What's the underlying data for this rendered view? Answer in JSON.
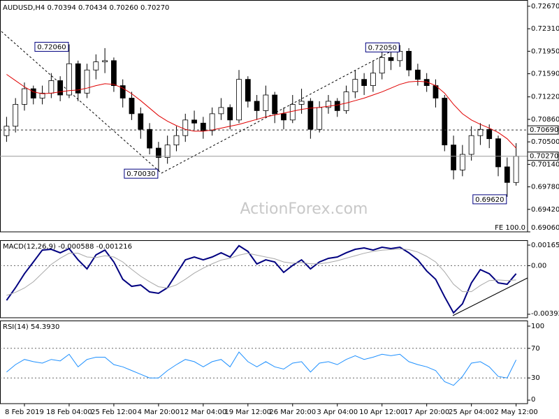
{
  "chart_data": [
    {
      "type": "candlestick",
      "title": "AUDUSD,H4  0.70394 0.70434 0.70260 0.70270",
      "categories": [
        null,
        null,
        "8 Feb 2019",
        null,
        null,
        null,
        null,
        "18 Feb 04:00",
        null,
        null,
        null,
        null,
        "25 Feb 12:00",
        null,
        null,
        null,
        null,
        "4 Mar 20:00",
        null,
        null,
        null,
        null,
        "12 Mar 04:00",
        null,
        null,
        null,
        null,
        "19 Mar 12:00",
        null,
        null,
        null,
        null,
        "26 Mar 20:00",
        null,
        null,
        null,
        null,
        "3 Apr 04:00",
        null,
        null,
        null,
        null,
        "10 Apr 12:00",
        null,
        null,
        null,
        null,
        "17 Apr 20:00",
        null,
        null,
        null,
        null,
        "25 Apr 04:00",
        null,
        null,
        null,
        null,
        "2 May 12:00"
      ],
      "candles": [
        [
          0.706,
          0.709,
          0.705,
          0.7075
        ],
        [
          0.7075,
          0.712,
          0.7065,
          0.711
        ],
        [
          0.711,
          0.7145,
          0.71,
          0.7135
        ],
        [
          0.7135,
          0.714,
          0.711,
          0.712
        ],
        [
          0.712,
          0.714,
          0.711,
          0.7128
        ],
        [
          0.7128,
          0.716,
          0.712,
          0.7148
        ],
        [
          0.7148,
          0.7155,
          0.7115,
          0.7125
        ],
        [
          0.7125,
          0.7206,
          0.712,
          0.7175
        ],
        [
          0.7175,
          0.718,
          0.7115,
          0.7128
        ],
        [
          0.7128,
          0.7175,
          0.712,
          0.7165
        ],
        [
          0.7165,
          0.719,
          0.715,
          0.7178
        ],
        [
          0.7178,
          0.72,
          0.716,
          0.718
        ],
        [
          0.718,
          0.7185,
          0.713,
          0.714
        ],
        [
          0.714,
          0.715,
          0.7105,
          0.712
        ],
        [
          0.712,
          0.713,
          0.7085,
          0.7095
        ],
        [
          0.7095,
          0.7105,
          0.7055,
          0.707
        ],
        [
          0.707,
          0.708,
          0.703,
          0.704
        ],
        [
          0.704,
          0.705,
          0.7003,
          0.7025
        ],
        [
          0.7025,
          0.706,
          0.7015,
          0.7045
        ],
        [
          0.7045,
          0.7075,
          0.7035,
          0.706
        ],
        [
          0.706,
          0.7095,
          0.705,
          0.7085
        ],
        [
          0.7085,
          0.71,
          0.707,
          0.708
        ],
        [
          0.708,
          0.709,
          0.7055,
          0.7068
        ],
        [
          0.7068,
          0.7105,
          0.706,
          0.7095
        ],
        [
          0.7095,
          0.712,
          0.7085,
          0.7105
        ],
        [
          0.7105,
          0.711,
          0.707,
          0.7085
        ],
        [
          0.7085,
          0.7165,
          0.708,
          0.715
        ],
        [
          0.715,
          0.7155,
          0.7105,
          0.7115
        ],
        [
          0.7115,
          0.7125,
          0.7085,
          0.71
        ],
        [
          0.71,
          0.714,
          0.709,
          0.7125
        ],
        [
          0.7125,
          0.713,
          0.708,
          0.7095
        ],
        [
          0.7095,
          0.7105,
          0.707,
          0.7085
        ],
        [
          0.7085,
          0.7125,
          0.708,
          0.711
        ],
        [
          0.711,
          0.7135,
          0.7095,
          0.7115
        ],
        [
          0.7115,
          0.712,
          0.7055,
          0.707
        ],
        [
          0.707,
          0.7115,
          0.7065,
          0.7105
        ],
        [
          0.7105,
          0.7125,
          0.7095,
          0.7115
        ],
        [
          0.7115,
          0.712,
          0.709,
          0.71
        ],
        [
          0.71,
          0.714,
          0.7095,
          0.713
        ],
        [
          0.713,
          0.7165,
          0.712,
          0.715
        ],
        [
          0.715,
          0.716,
          0.7125,
          0.714
        ],
        [
          0.714,
          0.718,
          0.713,
          0.716
        ],
        [
          0.716,
          0.7195,
          0.715,
          0.7185
        ],
        [
          0.7185,
          0.7195,
          0.7165,
          0.718
        ],
        [
          0.718,
          0.7205,
          0.717,
          0.7195
        ],
        [
          0.7195,
          0.72,
          0.7155,
          0.7165
        ],
        [
          0.7165,
          0.7175,
          0.714,
          0.715
        ],
        [
          0.715,
          0.716,
          0.713,
          0.714
        ],
        [
          0.714,
          0.715,
          0.7105,
          0.712
        ],
        [
          0.712,
          0.7125,
          0.7035,
          0.7045
        ],
        [
          0.7045,
          0.706,
          0.699,
          0.7005
        ],
        [
          0.7005,
          0.7045,
          0.6995,
          0.703
        ],
        [
          0.703,
          0.7075,
          0.702,
          0.706
        ],
        [
          0.706,
          0.708,
          0.7045,
          0.707
        ],
        [
          0.707,
          0.7078,
          0.704,
          0.7055
        ],
        [
          0.7055,
          0.706,
          0.6995,
          0.701
        ],
        [
          0.701,
          0.7025,
          0.6962,
          0.6985
        ],
        [
          0.6985,
          0.7048,
          0.698,
          0.7027
        ]
      ],
      "up_color": "#ffffff",
      "down_color": "#000000",
      "ma": {
        "color": "#e00000",
        "values": [
          0.7158,
          0.7148,
          0.7138,
          0.713,
          0.7127,
          0.7128,
          0.713,
          0.7132,
          0.7133,
          0.7136,
          0.714,
          0.7143,
          0.7142,
          0.7136,
          0.7127,
          0.7116,
          0.7104,
          0.7092,
          0.7083,
          0.7076,
          0.707,
          0.7067,
          0.7067,
          0.7069,
          0.7072,
          0.7075,
          0.7078,
          0.7082,
          0.7086,
          0.709,
          0.7093,
          0.7096,
          0.7099,
          0.7102,
          0.7104,
          0.7105,
          0.7107,
          0.7109,
          0.7112,
          0.7116,
          0.712,
          0.7125,
          0.713,
          0.7136,
          0.7142,
          0.7146,
          0.7147,
          0.7146,
          0.714,
          0.7128,
          0.711,
          0.7095,
          0.7085,
          0.7078,
          0.7072,
          0.7065,
          0.7055,
          0.704
        ]
      },
      "ylim": [
        0.6906,
        0.7277
      ],
      "yticks": [
        {
          "value": 0.7267,
          "label": "0.72670"
        },
        {
          "value": 0.7231,
          "label": "0.72310"
        },
        {
          "value": 0.7195,
          "label": "0.71950"
        },
        {
          "value": 0.7159,
          "label": "0.71590"
        },
        {
          "value": 0.7122,
          "label": "0.71220"
        },
        {
          "value": 0.7086,
          "label": "0.70860"
        },
        {
          "value": 0.705,
          "label": "0.70500"
        },
        {
          "value": 0.7014,
          "label": "0.70140"
        },
        {
          "value": 0.6978,
          "label": "0.69780"
        },
        {
          "value": 0.6942,
          "label": "0.69420"
        },
        {
          "value": 0.6906,
          "label": "0.69060"
        }
      ],
      "levels": [
        {
          "value": 0.7069,
          "label": "0.70690",
          "style": "dashed"
        },
        {
          "value": 0.7027,
          "label": "0.70270",
          "style": "solid"
        }
      ],
      "annotations": [
        {
          "value": 0.7206,
          "label": "0.72060"
        },
        {
          "value": 0.7003,
          "label": "0.70030"
        },
        {
          "value": 0.7205,
          "label": "0.72050"
        },
        {
          "value": 0.6962,
          "label": "0.69620"
        }
      ],
      "fe_label": "FE 100.0",
      "watermark": "ActionForex.com"
    },
    {
      "type": "line",
      "title": "MACD(12,26,9) -0.000588 -0.001216",
      "series": [
        {
          "color": "#000080",
          "width": 2,
          "values": [
            -0.0028,
            -0.00178,
            -0.00065,
            0.0003,
            0.00126,
            0.00132,
            0.00104,
            0.00138,
            0.00047,
            -0.00026,
            0.00087,
            0.00126,
            0.0003,
            -0.0011,
            -0.00167,
            -0.00156,
            -0.00212,
            -0.00223,
            -0.00178,
            -0.00065,
            0.00047,
            0.0007,
            0.00047,
            0.0007,
            0.00104,
            0.0007,
            0.00161,
            0.00115,
            0.00014,
            0.00047,
            0.0003,
            -0.00054,
            2e-05,
            0.00047,
            -0.00026,
            0.0003,
            0.00059,
            0.0007,
            0.00104,
            0.00132,
            0.00143,
            0.00126,
            0.00149,
            0.00138,
            0.00149,
            0.00104,
            0.00047,
            -0.00043,
            -0.0011,
            -0.00251,
            -0.00381,
            -0.00308,
            -0.00139,
            -0.00032,
            -0.00065,
            -0.00139,
            -0.0015,
            -0.00065
          ]
        },
        {
          "color": "#a8a8a8",
          "width": 1,
          "values": [
            -0.0024,
            -0.00215,
            -0.0018,
            -0.0013,
            -0.0006,
            0.0001,
            0.0006,
            0.001,
            0.001,
            0.0007,
            0.00065,
            0.0008,
            0.0007,
            0.0003,
            -0.0003,
            -0.00085,
            -0.0013,
            -0.0017,
            -0.0018,
            -0.00155,
            -0.0011,
            -0.0006,
            -0.0002,
            0.00015,
            0.00045,
            0.0006,
            0.00085,
            0.001,
            0.00085,
            0.0007,
            0.00055,
            0.0003,
            0.0002,
            0.00025,
            0.00015,
            0.00015,
            0.00025,
            0.0004,
            0.0006,
            0.0008,
            0.001,
            0.00115,
            0.00125,
            0.0013,
            0.00135,
            0.0013,
            0.0011,
            0.00075,
            0.0003,
            -0.0005,
            -0.0015,
            -0.0021,
            -0.0021,
            -0.0016,
            -0.0012,
            -0.00115,
            -0.0012,
            -0.00115
          ]
        }
      ],
      "ylim": [
        -0.004204,
        0.001997
      ],
      "yticks": [
        -0.003922,
        {
          "value": 0,
          "label": "0.00"
        },
        0.001659
      ],
      "levels": [
        0
      ]
    },
    {
      "type": "line",
      "title": "RSI(14) 54.3930",
      "series": [
        {
          "color": "#1e90ff",
          "width": 1,
          "values": [
            38,
            48,
            55,
            52,
            50,
            55,
            53,
            62,
            45,
            55,
            58,
            58,
            48,
            45,
            40,
            35,
            30,
            30,
            40,
            48,
            55,
            52,
            45,
            52,
            55,
            45,
            65,
            52,
            45,
            52,
            45,
            42,
            50,
            52,
            38,
            50,
            52,
            48,
            55,
            60,
            55,
            58,
            62,
            60,
            62,
            52,
            48,
            45,
            40,
            25,
            20,
            32,
            50,
            52,
            45,
            32,
            30,
            54.393
          ]
        }
      ],
      "ylim": [
        -4.7,
        106.6
      ],
      "yticks": [
        0,
        30,
        70,
        100
      ],
      "levels": [
        30,
        70
      ]
    }
  ]
}
